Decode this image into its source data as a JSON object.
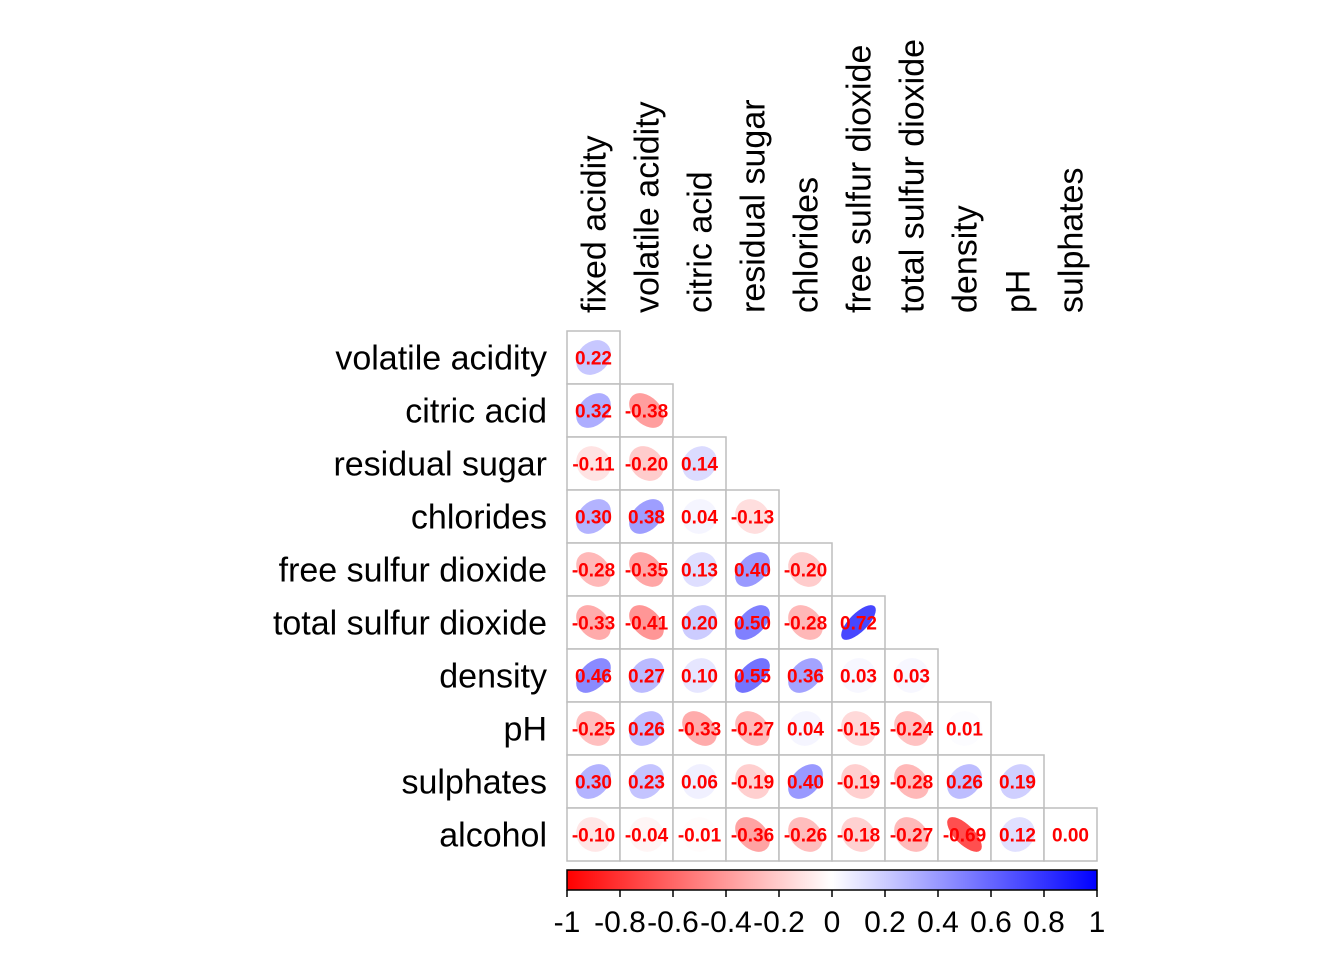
{
  "chart_data": {
    "type": "heatmap",
    "variables": [
      "fixed acidity",
      "volatile acidity",
      "citric acid",
      "residual sugar",
      "chlorides",
      "free sulfur dioxide",
      "total sulfur dioxide",
      "density",
      "pH",
      "sulphates",
      "alcohol"
    ],
    "row_labels": [
      "volatile acidity",
      "citric acid",
      "residual sugar",
      "chlorides",
      "free sulfur dioxide",
      "total sulfur dioxide",
      "density",
      "pH",
      "sulphates",
      "alcohol"
    ],
    "col_labels": [
      "fixed acidity",
      "volatile acidity",
      "citric acid",
      "residual sugar",
      "chlorides",
      "free sulfur dioxide",
      "total sulfur dioxide",
      "density",
      "pH",
      "sulphates"
    ],
    "values": [
      [
        0.22
      ],
      [
        0.32,
        -0.38
      ],
      [
        -0.11,
        -0.2,
        0.14
      ],
      [
        0.3,
        0.38,
        0.04,
        -0.13
      ],
      [
        -0.28,
        -0.35,
        0.13,
        0.4,
        -0.2
      ],
      [
        -0.33,
        -0.41,
        0.2,
        0.5,
        -0.28,
        0.72
      ],
      [
        0.46,
        0.27,
        0.1,
        0.55,
        0.36,
        0.03,
        0.03
      ],
      [
        -0.25,
        0.26,
        -0.33,
        -0.27,
        0.04,
        -0.15,
        -0.24,
        0.01
      ],
      [
        0.3,
        0.23,
        0.06,
        -0.19,
        0.4,
        -0.19,
        -0.28,
        0.26,
        0.19
      ],
      [
        -0.1,
        -0.04,
        -0.01,
        -0.36,
        -0.26,
        -0.18,
        -0.27,
        -0.69,
        0.12,
        0.0
      ]
    ],
    "value_labels": [
      [
        "0.22"
      ],
      [
        "0.32",
        "-0.38"
      ],
      [
        "-0.11",
        "-0.20",
        "0.14"
      ],
      [
        "0.30",
        "0.38",
        "0.04",
        "-0.13"
      ],
      [
        "-0.28",
        "-0.35",
        "0.13",
        "0.40",
        "-0.20"
      ],
      [
        "-0.33",
        "-0.41",
        "0.20",
        "0.50",
        "-0.28",
        "0.72"
      ],
      [
        "0.46",
        "0.27",
        "0.10",
        "0.55",
        "0.36",
        "0.03",
        "0.03"
      ],
      [
        "-0.25",
        "0.26",
        "-0.33",
        "-0.27",
        "0.04",
        "-0.15",
        "-0.24",
        "0.01"
      ],
      [
        "0.30",
        "0.23",
        "0.06",
        "-0.19",
        "0.40",
        "-0.19",
        "-0.28",
        "0.26",
        "0.19"
      ],
      [
        "-0.10",
        "-0.04",
        "-0.01",
        "-0.36",
        "-0.26",
        "-0.18",
        "-0.27",
        "-0.69",
        "0.12",
        "0.00"
      ]
    ],
    "glyph": "ellipse",
    "layout": "lower-triangle",
    "colorbar": {
      "range": [
        -1,
        1
      ],
      "ticks": [
        -1,
        -0.8,
        -0.6,
        -0.4,
        -0.2,
        0,
        0.2,
        0.4,
        0.6,
        0.8,
        1
      ],
      "tick_labels": [
        "-1",
        "-0.8",
        "-0.6",
        "-0.4",
        "-0.2",
        "0",
        "0.2",
        "0.4",
        "0.6",
        "0.8",
        "1"
      ],
      "orientation": "horizontal",
      "placement": "bottom"
    },
    "colors": {
      "negative": "#ff0000",
      "zero": "#ffffff",
      "positive": "#0000ff",
      "value_text": "#ff0000",
      "cell_border": "#bebebe"
    }
  }
}
